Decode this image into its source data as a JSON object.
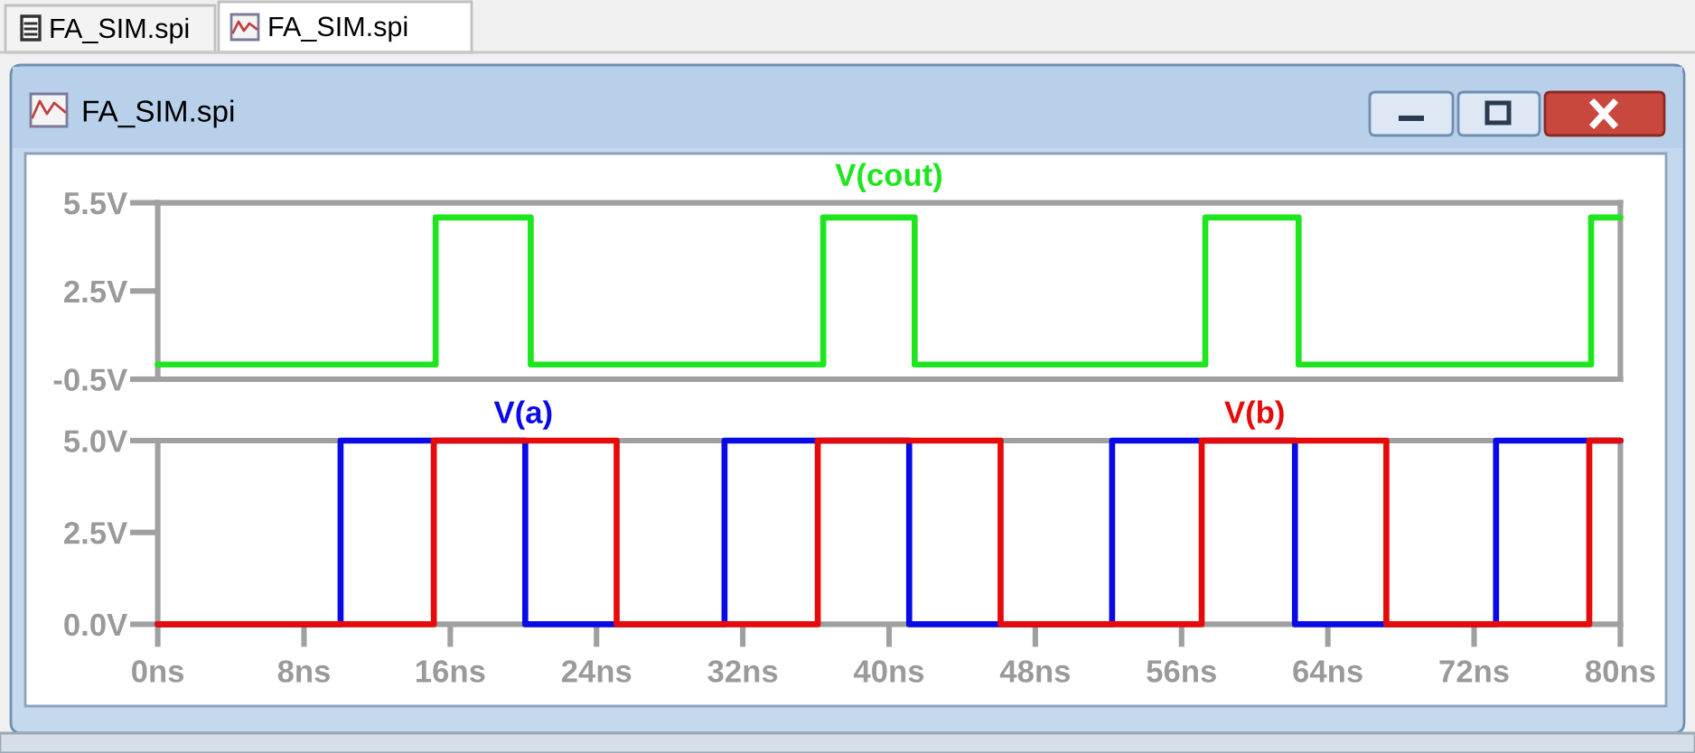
{
  "chart_data": [
    {
      "type": "step",
      "title": "FA_SIM.spi",
      "annotations": [
        "FA_SIM.spi",
        "FA_SIM.spi"
      ],
      "xlim": [
        0,
        80
      ],
      "ylim": [
        -0.5,
        5.5
      ],
      "yticks": [
        {
          "value": -0.5,
          "label": "-0.5V"
        },
        {
          "value": 2.5,
          "label": "2.5V"
        },
        {
          "value": 5.5,
          "label": "5.5V"
        }
      ],
      "tick_labels": "y",
      "legend": "top",
      "series": [
        {
          "name": "V(cout)",
          "color": "#1ee61e",
          "x": [
            0,
            15.2,
            20.4,
            36.4,
            41.4,
            57.3,
            62.4,
            78.4,
            80
          ],
          "values": [
            0,
            5,
            0,
            5,
            0,
            5,
            0,
            5,
            5
          ]
        }
      ]
    },
    {
      "type": "step",
      "xlim": [
        0,
        80
      ],
      "ylim": [
        0,
        5
      ],
      "xticks": [
        {
          "value": 0,
          "label": "0ns"
        },
        {
          "value": 8,
          "label": "8ns"
        },
        {
          "value": 16,
          "label": "16ns"
        },
        {
          "value": 24,
          "label": "24ns"
        },
        {
          "value": 32,
          "label": "32ns"
        },
        {
          "value": 40,
          "label": "40ns"
        },
        {
          "value": 48,
          "label": "48ns"
        },
        {
          "value": 56,
          "label": "56ns"
        },
        {
          "value": 64,
          "label": "64ns"
        },
        {
          "value": 72,
          "label": "72ns"
        },
        {
          "value": 80,
          "label": "80ns"
        }
      ],
      "yticks": [
        {
          "value": 0,
          "label": "0.0V"
        },
        {
          "value": 2.5,
          "label": "2.5V"
        },
        {
          "value": 5,
          "label": "5.0V"
        }
      ],
      "legend": "top",
      "series": [
        {
          "name": "V(a)",
          "color": "#0a0ae6",
          "x": [
            0,
            10,
            20.1,
            31,
            41.1,
            52.2,
            62.2,
            73.2,
            80
          ],
          "values": [
            0,
            5,
            0,
            5,
            0,
            5,
            0,
            5,
            5
          ]
        },
        {
          "name": "V(b)",
          "color": "#e60a0a",
          "x": [
            0,
            15.1,
            25.1,
            36.1,
            46.1,
            57.1,
            67.2,
            78.3,
            80
          ],
          "values": [
            0,
            5,
            0,
            5,
            0,
            5,
            0,
            5,
            5
          ]
        }
      ]
    }
  ]
}
